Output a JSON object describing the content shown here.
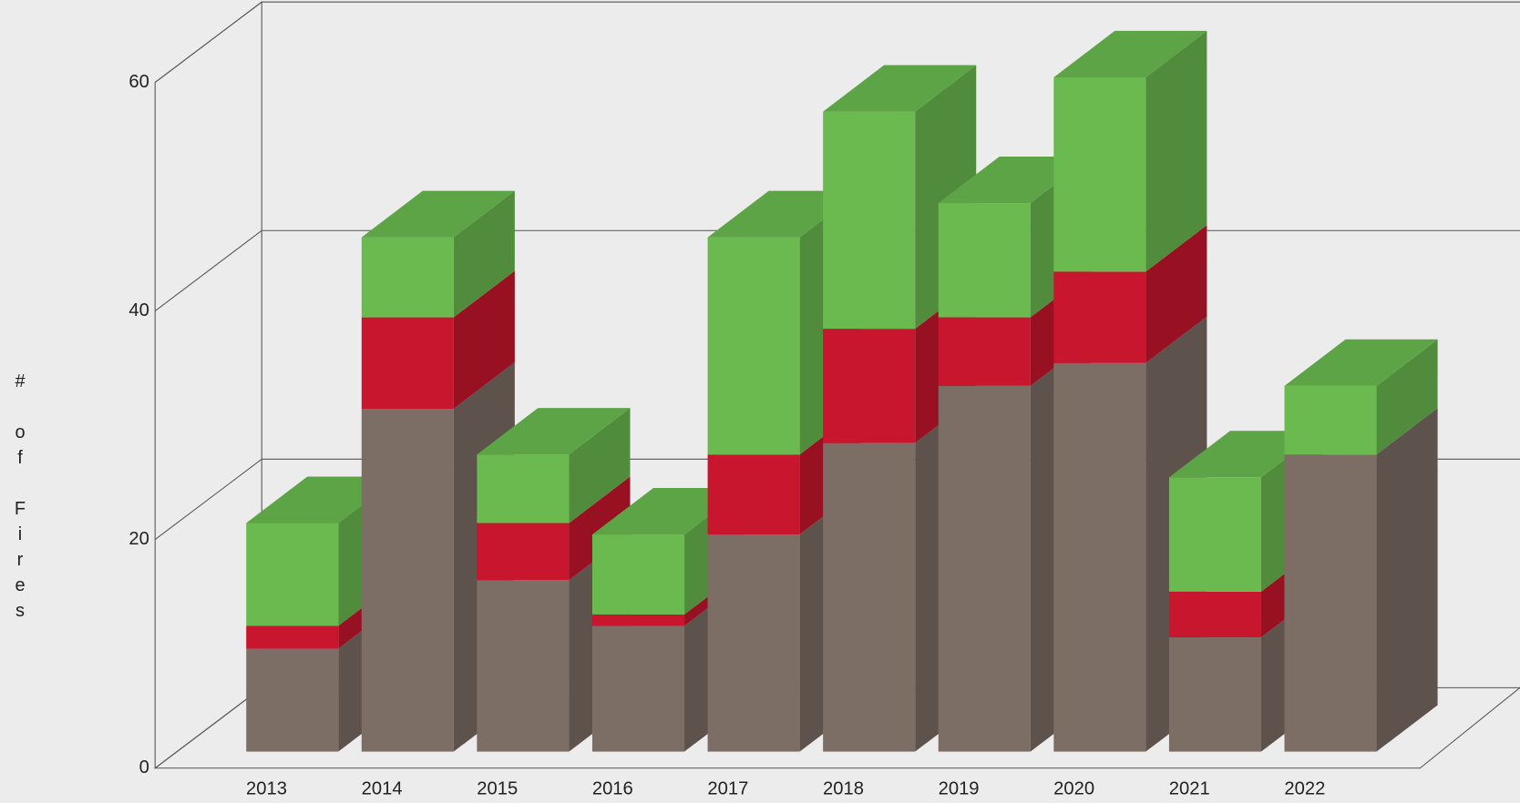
{
  "chart_data": {
    "type": "bar3d_stacked",
    "y_label": "# of Fires",
    "categories": [
      "2013",
      "2014",
      "2015",
      "2016",
      "2017",
      "2018",
      "2019",
      "2020",
      "2021",
      "2022"
    ],
    "series": [
      {
        "color": "#7d6e65",
        "values": [
          9,
          30,
          15,
          11,
          19,
          27,
          32,
          34,
          10,
          26
        ]
      },
      {
        "color": "#c9162f",
        "values": [
          2,
          8,
          5,
          1,
          7,
          10,
          6,
          8,
          4,
          0
        ]
      },
      {
        "color": "#6aba50",
        "values": [
          9,
          7,
          6,
          7,
          19,
          19,
          10,
          17,
          10,
          6
        ]
      }
    ],
    "ylim": [
      0,
      60
    ],
    "yticks": [
      0,
      20,
      40,
      60
    ],
    "grid": true
  }
}
